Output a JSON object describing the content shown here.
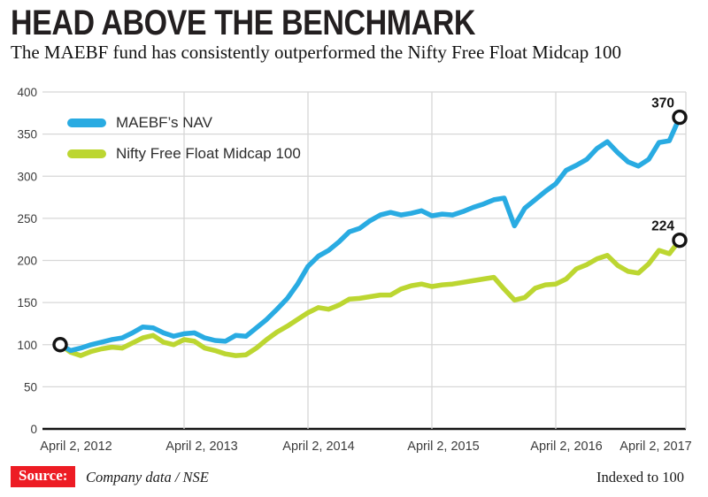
{
  "header": {
    "title": "HEAD ABOVE THE BENCHMARK",
    "subtitle": "The MAEBF fund has consistently outperformed the Nifty Free Float Midcap 100"
  },
  "footer": {
    "source_label": "Source:",
    "source_value": "Company data / NSE",
    "note": "Indexed to 100",
    "source_box_color": "#ed1c24"
  },
  "legend": [
    {
      "label": "MAEBF’s NAV",
      "color": "#29abe2"
    },
    {
      "label": "Nifty Free Float Midcap 100",
      "color": "#bcd631"
    }
  ],
  "chart_data": {
    "type": "line",
    "title": "HEAD ABOVE THE BENCHMARK",
    "xlabel": "",
    "ylabel": "",
    "ylim": [
      0,
      400
    ],
    "grid": true,
    "legend_position": "top-left",
    "x_tick_labels": [
      "April 2, 2012",
      "April 2, 2013",
      "April 2, 2014",
      "April 2, 2015",
      "April 2, 2016",
      "April 2, 2017"
    ],
    "y_ticks": [
      0,
      50,
      100,
      150,
      200,
      250,
      300,
      350,
      400
    ],
    "x_unit": "monthly points from April 2, 2012 to April 2, 2017",
    "start_value": 100,
    "series": [
      {
        "name": "MAEBF’s NAV",
        "color": "#29abe2",
        "end_label": "370",
        "values": [
          100,
          93,
          96,
          100,
          103,
          106,
          108,
          114,
          121,
          120,
          114,
          110,
          113,
          114,
          108,
          105,
          104,
          111,
          110,
          120,
          130,
          142,
          155,
          172,
          193,
          205,
          212,
          222,
          234,
          238,
          247,
          254,
          257,
          254,
          256,
          259,
          253,
          255,
          254,
          258,
          263,
          267,
          272,
          274,
          241,
          262,
          272,
          282,
          291,
          307,
          313,
          320,
          333,
          341,
          328,
          317,
          312,
          320,
          340,
          342,
          370
        ]
      },
      {
        "name": "Nifty Free Float Midcap 100",
        "color": "#bcd631",
        "end_label": "224",
        "values": [
          100,
          91,
          87,
          92,
          95,
          97,
          96,
          102,
          108,
          111,
          103,
          100,
          106,
          104,
          96,
          93,
          89,
          87,
          88,
          96,
          106,
          115,
          122,
          130,
          138,
          144,
          142,
          147,
          154,
          155,
          157,
          159,
          159,
          166,
          170,
          172,
          169,
          171,
          172,
          174,
          176,
          178,
          180,
          166,
          153,
          156,
          167,
          171,
          172,
          178,
          190,
          195,
          202,
          206,
          194,
          187,
          185,
          196,
          212,
          208,
          224
        ]
      }
    ]
  }
}
